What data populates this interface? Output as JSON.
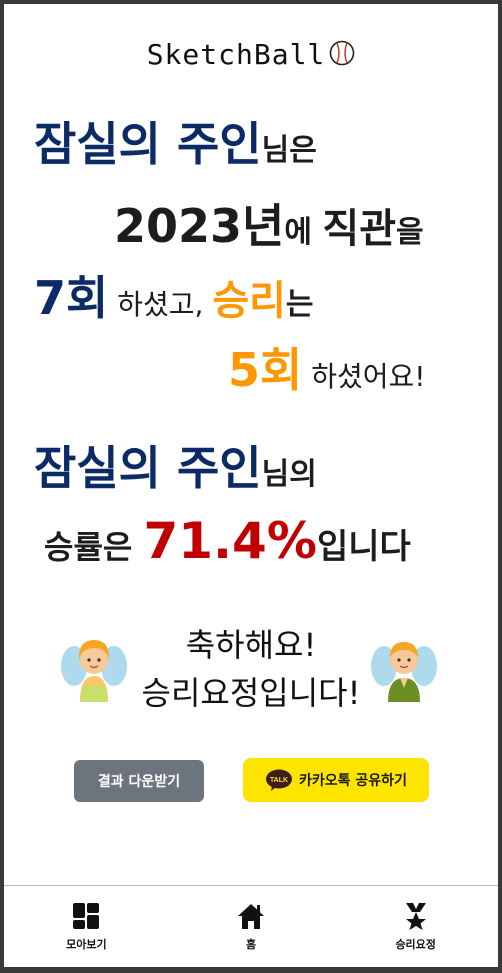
{
  "brand": {
    "logo_text": "SketchBall"
  },
  "result": {
    "line1": {
      "user": "잠실의 주인",
      "suffix": "님은"
    },
    "line2": {
      "year": "2023년",
      "mid": "에 ",
      "watch": "직관",
      "suffix": "을"
    },
    "line3": {
      "count": "7회",
      "mid": " 하셨고, ",
      "win": "승리",
      "suffix": "는"
    },
    "line4": {
      "wins": "5회",
      "suffix": " 하셨어요!"
    },
    "line5": {
      "user": "잠실의 주인",
      "suffix": "님의"
    },
    "line6": {
      "prefix": "승률은 ",
      "rate": "71.4%",
      "suffix": "입니다"
    }
  },
  "congrats": {
    "line1": "축하해요!",
    "line2": "승리요정입니다!"
  },
  "buttons": {
    "download": "결과 다운받기",
    "kakao_share": "카카오톡 공유하기",
    "kakao_badge": "TALK"
  },
  "nav": {
    "items": [
      {
        "label": "모아보기",
        "icon": "grid-icon"
      },
      {
        "label": "홈",
        "icon": "home-icon"
      },
      {
        "label": "승리요정",
        "icon": "trophy-star-icon"
      }
    ]
  },
  "colors": {
    "navy": "#0b2a66",
    "orange": "#ff9800",
    "red": "#c00000",
    "kakao_yellow": "#fee500",
    "download_gray": "#6c757d"
  }
}
